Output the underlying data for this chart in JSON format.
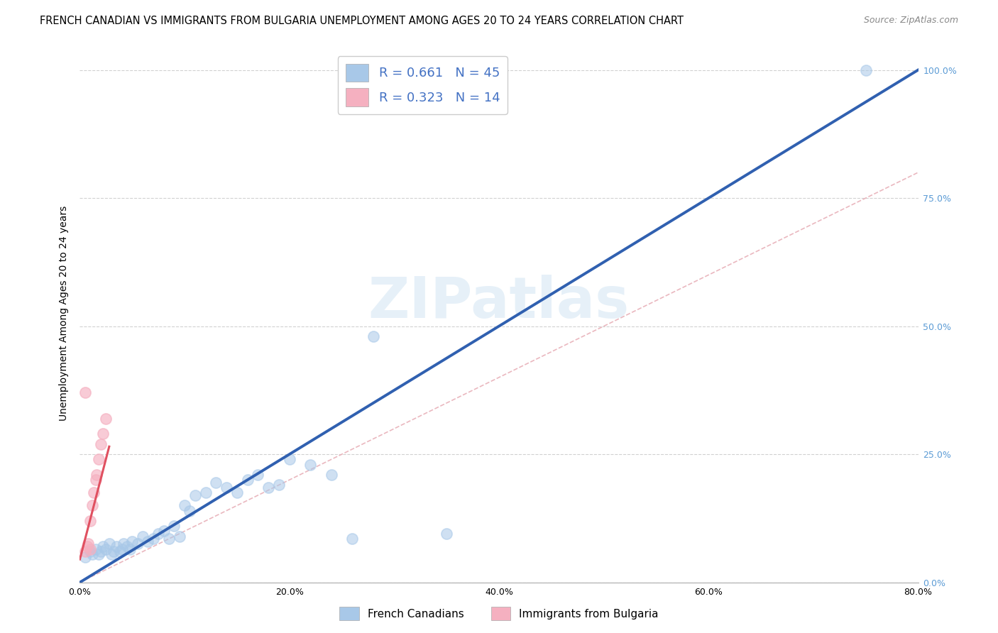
{
  "title": "FRENCH CANADIAN VS IMMIGRANTS FROM BULGARIA UNEMPLOYMENT AMONG AGES 20 TO 24 YEARS CORRELATION CHART",
  "source": "Source: ZipAtlas.com",
  "xlabel_ticks": [
    "0.0%",
    "20.0%",
    "40.0%",
    "60.0%",
    "80.0%"
  ],
  "ylabel_label": "Unemployment Among Ages 20 to 24 years",
  "ylabel_ticks_right": [
    "100.0%",
    "75.0%",
    "50.0%",
    "25.0%",
    "0.0%"
  ],
  "xmin": 0.0,
  "xmax": 0.8,
  "ymin": 0.0,
  "ymax": 1.05,
  "legend_entries": [
    {
      "label": "R = 0.661   N = 45",
      "color": "#a8c8e8"
    },
    {
      "label": "R = 0.323   N = 14",
      "color": "#f5b0c0"
    }
  ],
  "watermark": "ZIPatlas",
  "blue_scatter_x": [
    0.005,
    0.01,
    0.012,
    0.015,
    0.018,
    0.02,
    0.022,
    0.025,
    0.028,
    0.03,
    0.032,
    0.035,
    0.038,
    0.04,
    0.042,
    0.045,
    0.048,
    0.05,
    0.055,
    0.06,
    0.065,
    0.07,
    0.075,
    0.08,
    0.085,
    0.09,
    0.095,
    0.1,
    0.105,
    0.11,
    0.12,
    0.13,
    0.14,
    0.15,
    0.16,
    0.17,
    0.18,
    0.19,
    0.2,
    0.22,
    0.24,
    0.26,
    0.35,
    0.28,
    0.75
  ],
  "blue_scatter_y": [
    0.05,
    0.06,
    0.055,
    0.065,
    0.055,
    0.06,
    0.07,
    0.065,
    0.075,
    0.055,
    0.06,
    0.07,
    0.06,
    0.065,
    0.075,
    0.07,
    0.065,
    0.08,
    0.075,
    0.09,
    0.08,
    0.085,
    0.095,
    0.1,
    0.085,
    0.11,
    0.09,
    0.15,
    0.14,
    0.17,
    0.175,
    0.195,
    0.185,
    0.175,
    0.2,
    0.21,
    0.185,
    0.19,
    0.24,
    0.23,
    0.21,
    0.085,
    0.095,
    0.48,
    1.0
  ],
  "pink_scatter_x": [
    0.005,
    0.007,
    0.008,
    0.01,
    0.01,
    0.012,
    0.013,
    0.015,
    0.016,
    0.018,
    0.02,
    0.022,
    0.025,
    0.005
  ],
  "pink_scatter_y": [
    0.06,
    0.07,
    0.075,
    0.065,
    0.12,
    0.15,
    0.175,
    0.2,
    0.21,
    0.24,
    0.27,
    0.29,
    0.32,
    0.37
  ],
  "blue_line_x": [
    0.0,
    0.8
  ],
  "blue_line_y": [
    0.0,
    1.0
  ],
  "pink_line_x": [
    0.0,
    0.028
  ],
  "pink_line_y": [
    0.045,
    0.265
  ],
  "diag_line_x": [
    0.0,
    0.8
  ],
  "diag_line_y": [
    0.0,
    0.8
  ],
  "scatter_size": 120,
  "blue_color": "#a8c8e8",
  "pink_color": "#f5b0c0",
  "blue_line_color": "#3060b0",
  "pink_line_color": "#e05060",
  "diag_line_color": "#e8b0b8",
  "title_fontsize": 10.5,
  "source_fontsize": 9,
  "label_fontsize": 10,
  "tick_fontsize": 9
}
